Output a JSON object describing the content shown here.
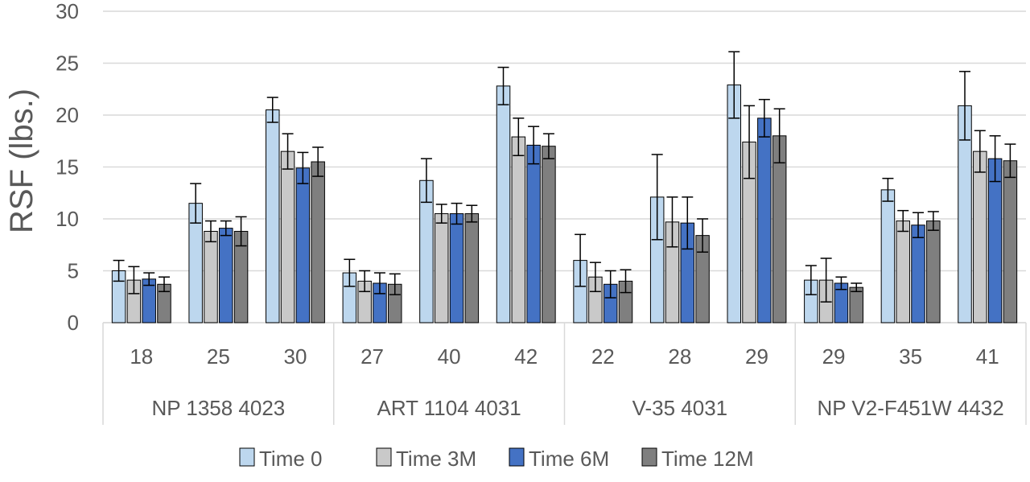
{
  "chart_data": {
    "type": "bar",
    "ylabel": "RSF (lbs.)",
    "xlabel": "",
    "title": "",
    "ylim": [
      0,
      30
    ],
    "yticks": [
      0,
      5,
      10,
      15,
      20,
      25,
      30
    ],
    "grid": true,
    "legend_position": "bottom",
    "groups": [
      {
        "label": "NP 1358 4023",
        "categories": [
          "18",
          "25",
          "30"
        ]
      },
      {
        "label": "ART 1104 4031",
        "categories": [
          "27",
          "40",
          "42"
        ]
      },
      {
        "label": "V-35 4031",
        "categories": [
          "22",
          "28",
          "29"
        ]
      },
      {
        "label": "NP V2-F451W 4432",
        "categories": [
          "29",
          "35",
          "41"
        ]
      }
    ],
    "series": [
      {
        "name": "Time 0",
        "color": "#BDD7EE",
        "values": [
          5.0,
          11.5,
          20.5,
          4.8,
          13.7,
          22.8,
          6.0,
          12.1,
          22.9,
          4.1,
          12.8,
          20.9
        ],
        "errors": [
          1.0,
          1.9,
          1.2,
          1.3,
          2.1,
          1.8,
          2.5,
          4.1,
          3.2,
          1.4,
          1.1,
          3.3
        ]
      },
      {
        "name": "Time 3M",
        "color": "#C9C9C9",
        "values": [
          4.1,
          8.8,
          16.5,
          4.0,
          10.5,
          17.9,
          4.4,
          9.7,
          17.4,
          4.1,
          9.8,
          16.5
        ],
        "errors": [
          1.3,
          1.0,
          1.7,
          1.0,
          0.9,
          1.8,
          1.4,
          2.4,
          3.5,
          2.1,
          1.0,
          2.0
        ]
      },
      {
        "name": "Time 6M",
        "color": "#4472C4",
        "values": [
          4.2,
          9.1,
          14.9,
          3.8,
          10.5,
          17.1,
          3.7,
          9.6,
          19.7,
          3.8,
          9.4,
          15.8
        ],
        "errors": [
          0.6,
          0.7,
          1.5,
          1.0,
          1.0,
          1.8,
          1.3,
          2.5,
          1.8,
          0.6,
          1.2,
          2.2
        ]
      },
      {
        "name": "Time 12M",
        "color": "#7F7F7F",
        "values": [
          3.7,
          8.8,
          15.5,
          3.7,
          10.5,
          17.0,
          4.0,
          8.4,
          18.0,
          3.4,
          9.8,
          15.6
        ],
        "errors": [
          0.7,
          1.4,
          1.4,
          1.0,
          0.8,
          1.2,
          1.1,
          1.6,
          2.6,
          0.4,
          0.9,
          1.6
        ]
      }
    ]
  }
}
